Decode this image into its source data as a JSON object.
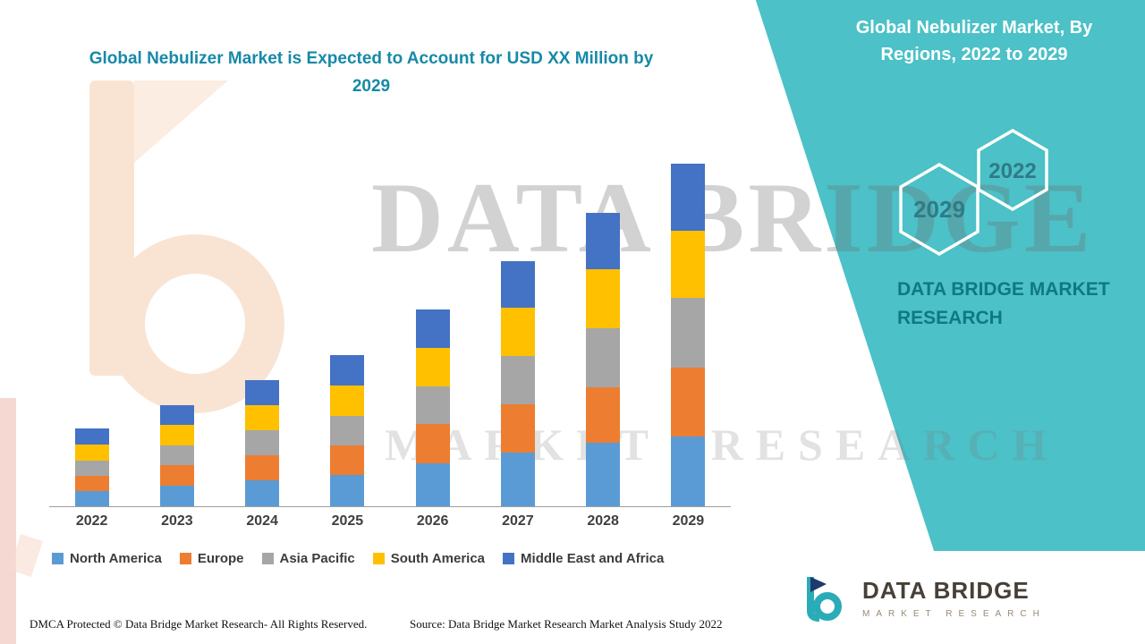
{
  "chart_data": {
    "type": "bar",
    "stacked": true,
    "title": "Global Nebulizer Market is Expected to Account for USD XX Million by 2029",
    "xlabel": "",
    "ylabel": "",
    "y_axis_visible": false,
    "grid": false,
    "legend_position": "bottom",
    "values_estimated": true,
    "categories": [
      "2022",
      "2023",
      "2024",
      "2025",
      "2026",
      "2027",
      "2028",
      "2029"
    ],
    "series": [
      {
        "name": "North America",
        "color": "#5B9BD5",
        "values": [
          17,
          23,
          29,
          35,
          48,
          60,
          71,
          78
        ]
      },
      {
        "name": "Europe",
        "color": "#ED7D31",
        "values": [
          17,
          23,
          28,
          33,
          44,
          54,
          62,
          77
        ]
      },
      {
        "name": "Asia Pacific",
        "color": "#A6A6A6",
        "values": [
          17,
          22,
          28,
          33,
          42,
          54,
          66,
          78
        ]
      },
      {
        "name": "South America",
        "color": "#FFC000",
        "values": [
          18,
          23,
          28,
          34,
          43,
          54,
          66,
          75
        ]
      },
      {
        "name": "Middle East and Africa",
        "color": "#4472C4",
        "values": [
          18,
          22,
          28,
          34,
          43,
          52,
          63,
          75
        ]
      }
    ]
  },
  "right_panel": {
    "panel_color": "#4CC1C7",
    "title": "Global Nebulizer Market, By Regions, 2022 to 2029",
    "hexagon_years": [
      "2029",
      "2022"
    ],
    "brand_line": "DATA BRIDGE MARKET RESEARCH"
  },
  "watermark": {
    "line1": "DATA BRIDGE",
    "line2": "MARKET RESEARCH"
  },
  "logo": {
    "name": "DATA BRIDGE",
    "tagline": "MARKET RESEARCH"
  },
  "footer": {
    "dmca": "DMCA Protected © Data Bridge Market Research- All Rights Reserved.",
    "source": "Source: Data Bridge Market Research Market Analysis Study 2022"
  }
}
